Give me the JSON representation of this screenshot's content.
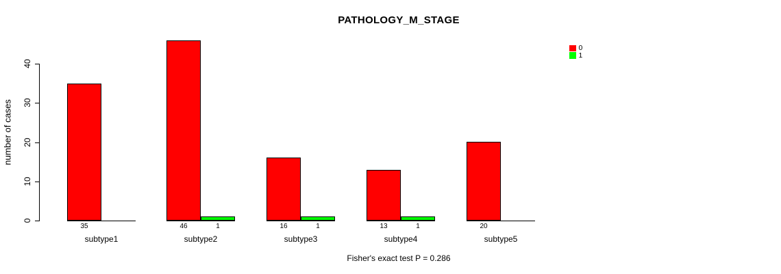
{
  "chart_data": {
    "type": "bar",
    "title": "PATHOLOGY_M_STAGE",
    "ylabel": "number of cases",
    "xlabel": "",
    "categories": [
      "subtype1",
      "subtype2",
      "subtype3",
      "subtype4",
      "subtype5"
    ],
    "series": [
      {
        "name": "0",
        "color": "#ff0000",
        "values": [
          35,
          46,
          16,
          13,
          20
        ]
      },
      {
        "name": "1",
        "color": "#00ff00",
        "values": [
          0,
          1,
          1,
          1,
          0
        ]
      }
    ],
    "bar_count_labels": {
      "series_0": [
        "35",
        "46",
        "16",
        "13",
        "20"
      ],
      "series_1": [
        "",
        "1",
        "1",
        "1",
        ""
      ]
    },
    "yticks": [
      0,
      10,
      20,
      30,
      40
    ],
    "ylim": [
      0,
      46
    ],
    "grid": false,
    "legend_position": "top-right",
    "legend_entries": [
      "0",
      "1"
    ],
    "annotation": "Fisher's exact test P = 0.286",
    "axis_color": "#000000",
    "background_color": "#ffffff"
  }
}
